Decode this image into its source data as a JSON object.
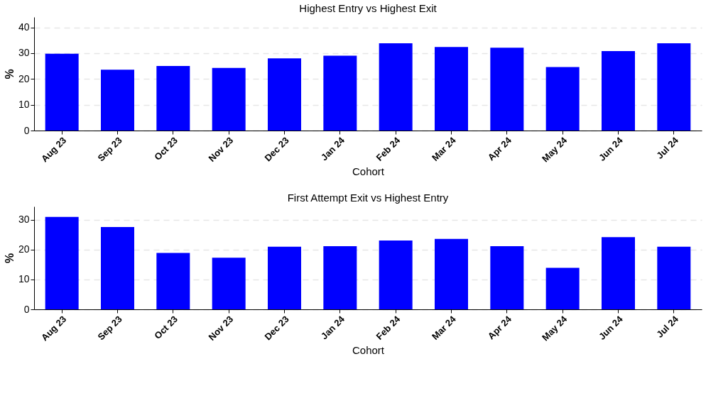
{
  "chart_data": [
    {
      "type": "bar",
      "title": "Highest Entry vs Highest Exit",
      "xlabel": "Cohort",
      "ylabel": "%",
      "categories": [
        "Aug 23",
        "Sep 23",
        "Oct 23",
        "Nov 23",
        "Dec 23",
        "Jan 24",
        "Feb 24",
        "Mar 24",
        "Apr 24",
        "May 24",
        "Jun 24",
        "Jul 24"
      ],
      "values": [
        29.8,
        23.6,
        25,
        24.3,
        28,
        29,
        33.8,
        32.4,
        32.1,
        24.6,
        30.8,
        33.8
      ],
      "color": "#0000ff",
      "ylim": [
        0,
        44
      ],
      "yticks": [
        0,
        10,
        20,
        30,
        40
      ],
      "grid": "y"
    },
    {
      "type": "bar",
      "title": "First Attempt Exit vs Highest Entry",
      "xlabel": "Cohort",
      "ylabel": "%",
      "categories": [
        "Aug 23",
        "Sep 23",
        "Oct 23",
        "Nov 23",
        "Dec 23",
        "Jan 24",
        "Feb 24",
        "Mar 24",
        "Apr 24",
        "May 24",
        "Jun 24",
        "Jul 24"
      ],
      "values": [
        31,
        27.6,
        18.9,
        17.3,
        21,
        21.2,
        23.1,
        23.6,
        21.2,
        13.9,
        24.2,
        21
      ],
      "color": "#0000ff",
      "ylim": [
        0,
        34.5
      ],
      "yticks": [
        0,
        10,
        20,
        30
      ],
      "grid": "y"
    }
  ]
}
